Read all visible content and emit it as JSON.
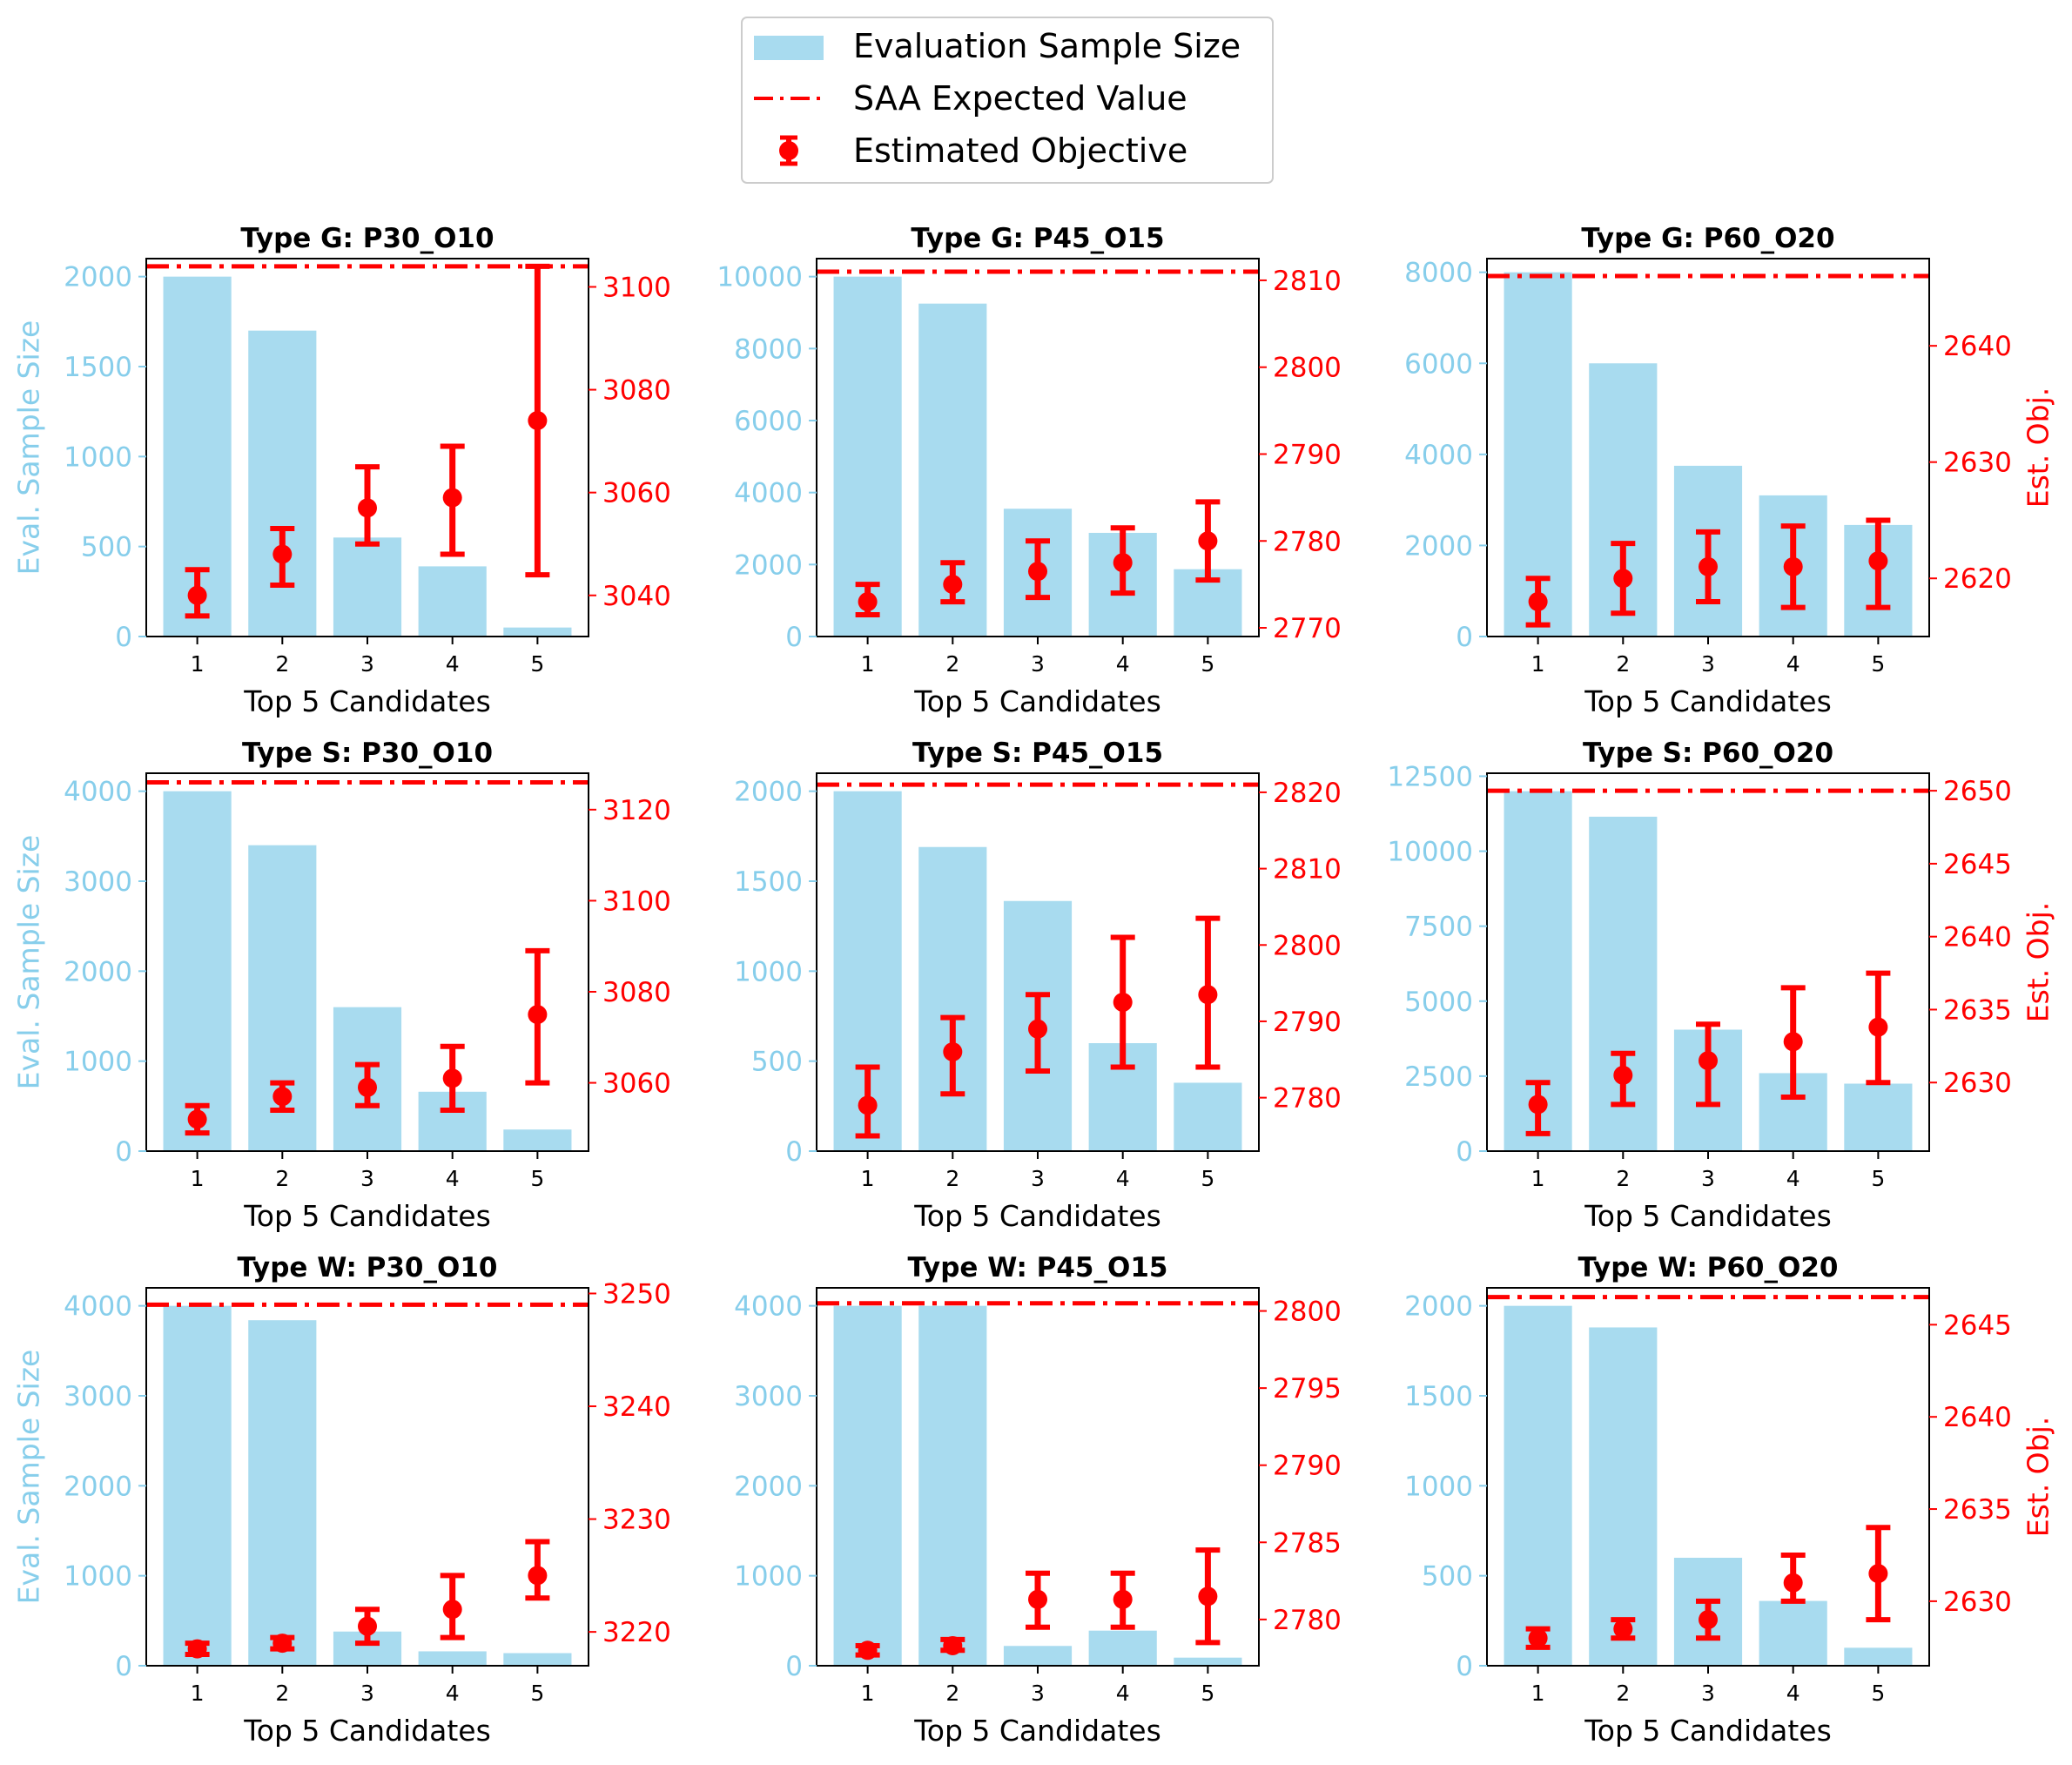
{
  "legend": {
    "bar_label": "Evaluation Sample Size",
    "line_label": "SAA Expected Value",
    "point_label": "Estimated Objective"
  },
  "colors": {
    "bar": "#a8dbef",
    "line": "#ff0000",
    "left_axis": "#87ceeb",
    "right_axis": "#ff0000"
  },
  "chart_data": [
    {
      "type": "bar",
      "title": "Type G: P30_O10",
      "xlabel": "Top 5 Candidates",
      "ylabel": "Eval. Sample Size",
      "ylabel_right": "",
      "categories": [
        "1",
        "2",
        "3",
        "4",
        "5"
      ],
      "bars": [
        2000,
        1700,
        550,
        390,
        50
      ],
      "ylim": [
        0,
        2100
      ],
      "yticks": [
        0,
        500,
        1000,
        1500,
        2000
      ],
      "est": [
        3040,
        3048,
        3057,
        3059,
        3074
      ],
      "err_low": [
        3036,
        3042,
        3050,
        3048,
        3044
      ],
      "err_high": [
        3045,
        3053,
        3065,
        3069,
        3104
      ],
      "saa": 3104,
      "y2lim": [
        3032,
        3105.5
      ],
      "y2ticks": [
        3040,
        3060,
        3080,
        3100
      ]
    },
    {
      "type": "bar",
      "title": "Type G: P45_O15",
      "xlabel": "Top 5 Candidates",
      "ylabel": "",
      "ylabel_right": "",
      "categories": [
        "1",
        "2",
        "3",
        "4",
        "5"
      ],
      "bars": [
        10000,
        9250,
        3550,
        2880,
        1870
      ],
      "ylim": [
        0,
        10500
      ],
      "yticks": [
        0,
        2000,
        4000,
        6000,
        8000,
        10000
      ],
      "est": [
        2773,
        2775,
        2776.5,
        2777.5,
        2780
      ],
      "err_low": [
        2771.5,
        2773,
        2773.5,
        2774,
        2775.5
      ],
      "err_high": [
        2775,
        2777.5,
        2780,
        2781.5,
        2784.5
      ],
      "saa": 2811,
      "y2lim": [
        2769,
        2812.5
      ],
      "y2ticks": [
        2770,
        2780,
        2790,
        2800,
        2810
      ]
    },
    {
      "type": "bar",
      "title": "Type G: P60_O20",
      "xlabel": "Top 5 Candidates",
      "ylabel": "",
      "ylabel_right": "Est. Obj.",
      "categories": [
        "1",
        "2",
        "3",
        "4",
        "5"
      ],
      "bars": [
        8000,
        6000,
        3750,
        3100,
        2450
      ],
      "ylim": [
        0,
        8300
      ],
      "yticks": [
        0,
        2000,
        4000,
        6000,
        8000
      ],
      "est": [
        2618,
        2620,
        2621,
        2621,
        2621.5
      ],
      "err_low": [
        2616,
        2617,
        2618,
        2617.5,
        2617.5
      ],
      "err_high": [
        2620,
        2623,
        2624,
        2624.5,
        2625
      ],
      "saa": 2646,
      "y2lim": [
        2615,
        2647.5
      ],
      "y2ticks": [
        2620,
        2630,
        2640
      ]
    },
    {
      "type": "bar",
      "title": "Type S: P30_O10",
      "xlabel": "Top 5 Candidates",
      "ylabel": "Eval. Sample Size",
      "ylabel_right": "",
      "categories": [
        "1",
        "2",
        "3",
        "4",
        "5"
      ],
      "bars": [
        4000,
        3400,
        1600,
        660,
        240
      ],
      "ylim": [
        0,
        4200
      ],
      "yticks": [
        0,
        1000,
        2000,
        3000,
        4000
      ],
      "est": [
        3052,
        3057,
        3059,
        3061,
        3075
      ],
      "err_low": [
        3049,
        3054,
        3055,
        3054,
        3060
      ],
      "err_high": [
        3055,
        3060,
        3064,
        3068,
        3089
      ],
      "saa": 3126,
      "y2lim": [
        3045,
        3128
      ],
      "y2ticks": [
        3060,
        3080,
        3100,
        3120
      ]
    },
    {
      "type": "bar",
      "title": "Type S: P45_O15",
      "xlabel": "Top 5 Candidates",
      "ylabel": "",
      "ylabel_right": "",
      "categories": [
        "1",
        "2",
        "3",
        "4",
        "5"
      ],
      "bars": [
        2000,
        1690,
        1390,
        600,
        380
      ],
      "ylim": [
        0,
        2100
      ],
      "yticks": [
        0,
        500,
        1000,
        1500,
        2000
      ],
      "est": [
        2779,
        2786,
        2789,
        2792.5,
        2793.5
      ],
      "err_low": [
        2775,
        2780.5,
        2783.5,
        2784,
        2784
      ],
      "err_high": [
        2784,
        2790.5,
        2793.5,
        2801,
        2803.5
      ],
      "saa": 2821,
      "y2lim": [
        2773,
        2822.5
      ],
      "y2ticks": [
        2780,
        2790,
        2800,
        2810,
        2820
      ]
    },
    {
      "type": "bar",
      "title": "Type S: P60_O20",
      "xlabel": "Top 5 Candidates",
      "ylabel": "",
      "ylabel_right": "Est. Obj.",
      "categories": [
        "1",
        "2",
        "3",
        "4",
        "5"
      ],
      "bars": [
        12000,
        11150,
        4050,
        2600,
        2250
      ],
      "ylim": [
        0,
        12600
      ],
      "yticks": [
        0,
        2500,
        5000,
        7500,
        10000,
        12500
      ],
      "est": [
        2628.5,
        2630.5,
        2631.5,
        2632.8,
        2633.8
      ],
      "err_low": [
        2626.5,
        2628.5,
        2628.5,
        2629,
        2630
      ],
      "err_high": [
        2630,
        2632,
        2634,
        2636.5,
        2637.5
      ],
      "saa": 2650,
      "y2lim": [
        2625.3,
        2651.2
      ],
      "y2ticks": [
        2630,
        2635,
        2640,
        2645,
        2650
      ]
    },
    {
      "type": "bar",
      "title": "Type W: P30_O10",
      "xlabel": "Top 5 Candidates",
      "ylabel": "Eval. Sample Size",
      "ylabel_right": "",
      "categories": [
        "1",
        "2",
        "3",
        "4",
        "5"
      ],
      "bars": [
        4000,
        3840,
        380,
        160,
        140
      ],
      "ylim": [
        0,
        4200
      ],
      "yticks": [
        0,
        1000,
        2000,
        3000,
        4000
      ],
      "est": [
        3218.5,
        3219,
        3220.5,
        3222,
        3225
      ],
      "err_low": [
        3218,
        3218.5,
        3219,
        3219.5,
        3223
      ],
      "err_high": [
        3219,
        3219.5,
        3222,
        3225,
        3228
      ],
      "saa": 3249,
      "y2lim": [
        3217,
        3250.5
      ],
      "y2ticks": [
        3220,
        3230,
        3240,
        3250
      ]
    },
    {
      "type": "bar",
      "title": "Type W: P45_O15",
      "xlabel": "Top 5 Candidates",
      "ylabel": "",
      "ylabel_right": "",
      "categories": [
        "1",
        "2",
        "3",
        "4",
        "5"
      ],
      "bars": [
        4000,
        4000,
        220,
        390,
        90
      ],
      "ylim": [
        0,
        4200
      ],
      "yticks": [
        0,
        1000,
        2000,
        3000,
        4000
      ],
      "est": [
        2778,
        2778.3,
        2781.3,
        2781.3,
        2781.5
      ],
      "err_low": [
        2777.7,
        2778,
        2779.5,
        2779.5,
        2778.5
      ],
      "err_high": [
        2778.3,
        2778.7,
        2783,
        2783,
        2784.5
      ],
      "saa": 2800.5,
      "y2lim": [
        2777,
        2801.5
      ],
      "y2ticks": [
        2780,
        2785,
        2790,
        2795,
        2800
      ]
    },
    {
      "type": "bar",
      "title": "Type W: P60_O20",
      "xlabel": "Top 5 Candidates",
      "ylabel": "",
      "ylabel_right": "Est. Obj.",
      "categories": [
        "1",
        "2",
        "3",
        "4",
        "5"
      ],
      "bars": [
        2000,
        1880,
        600,
        360,
        100
      ],
      "ylim": [
        0,
        2100
      ],
      "yticks": [
        0,
        500,
        1000,
        1500,
        2000
      ],
      "est": [
        2628,
        2628.5,
        2629,
        2631,
        2631.5
      ],
      "err_low": [
        2627.5,
        2628,
        2628,
        2630,
        2629
      ],
      "err_high": [
        2628.5,
        2629,
        2630,
        2632.5,
        2634
      ],
      "saa": 2646.5,
      "y2lim": [
        2626.5,
        2647
      ],
      "y2ticks": [
        2630,
        2635,
        2640,
        2645
      ]
    }
  ]
}
